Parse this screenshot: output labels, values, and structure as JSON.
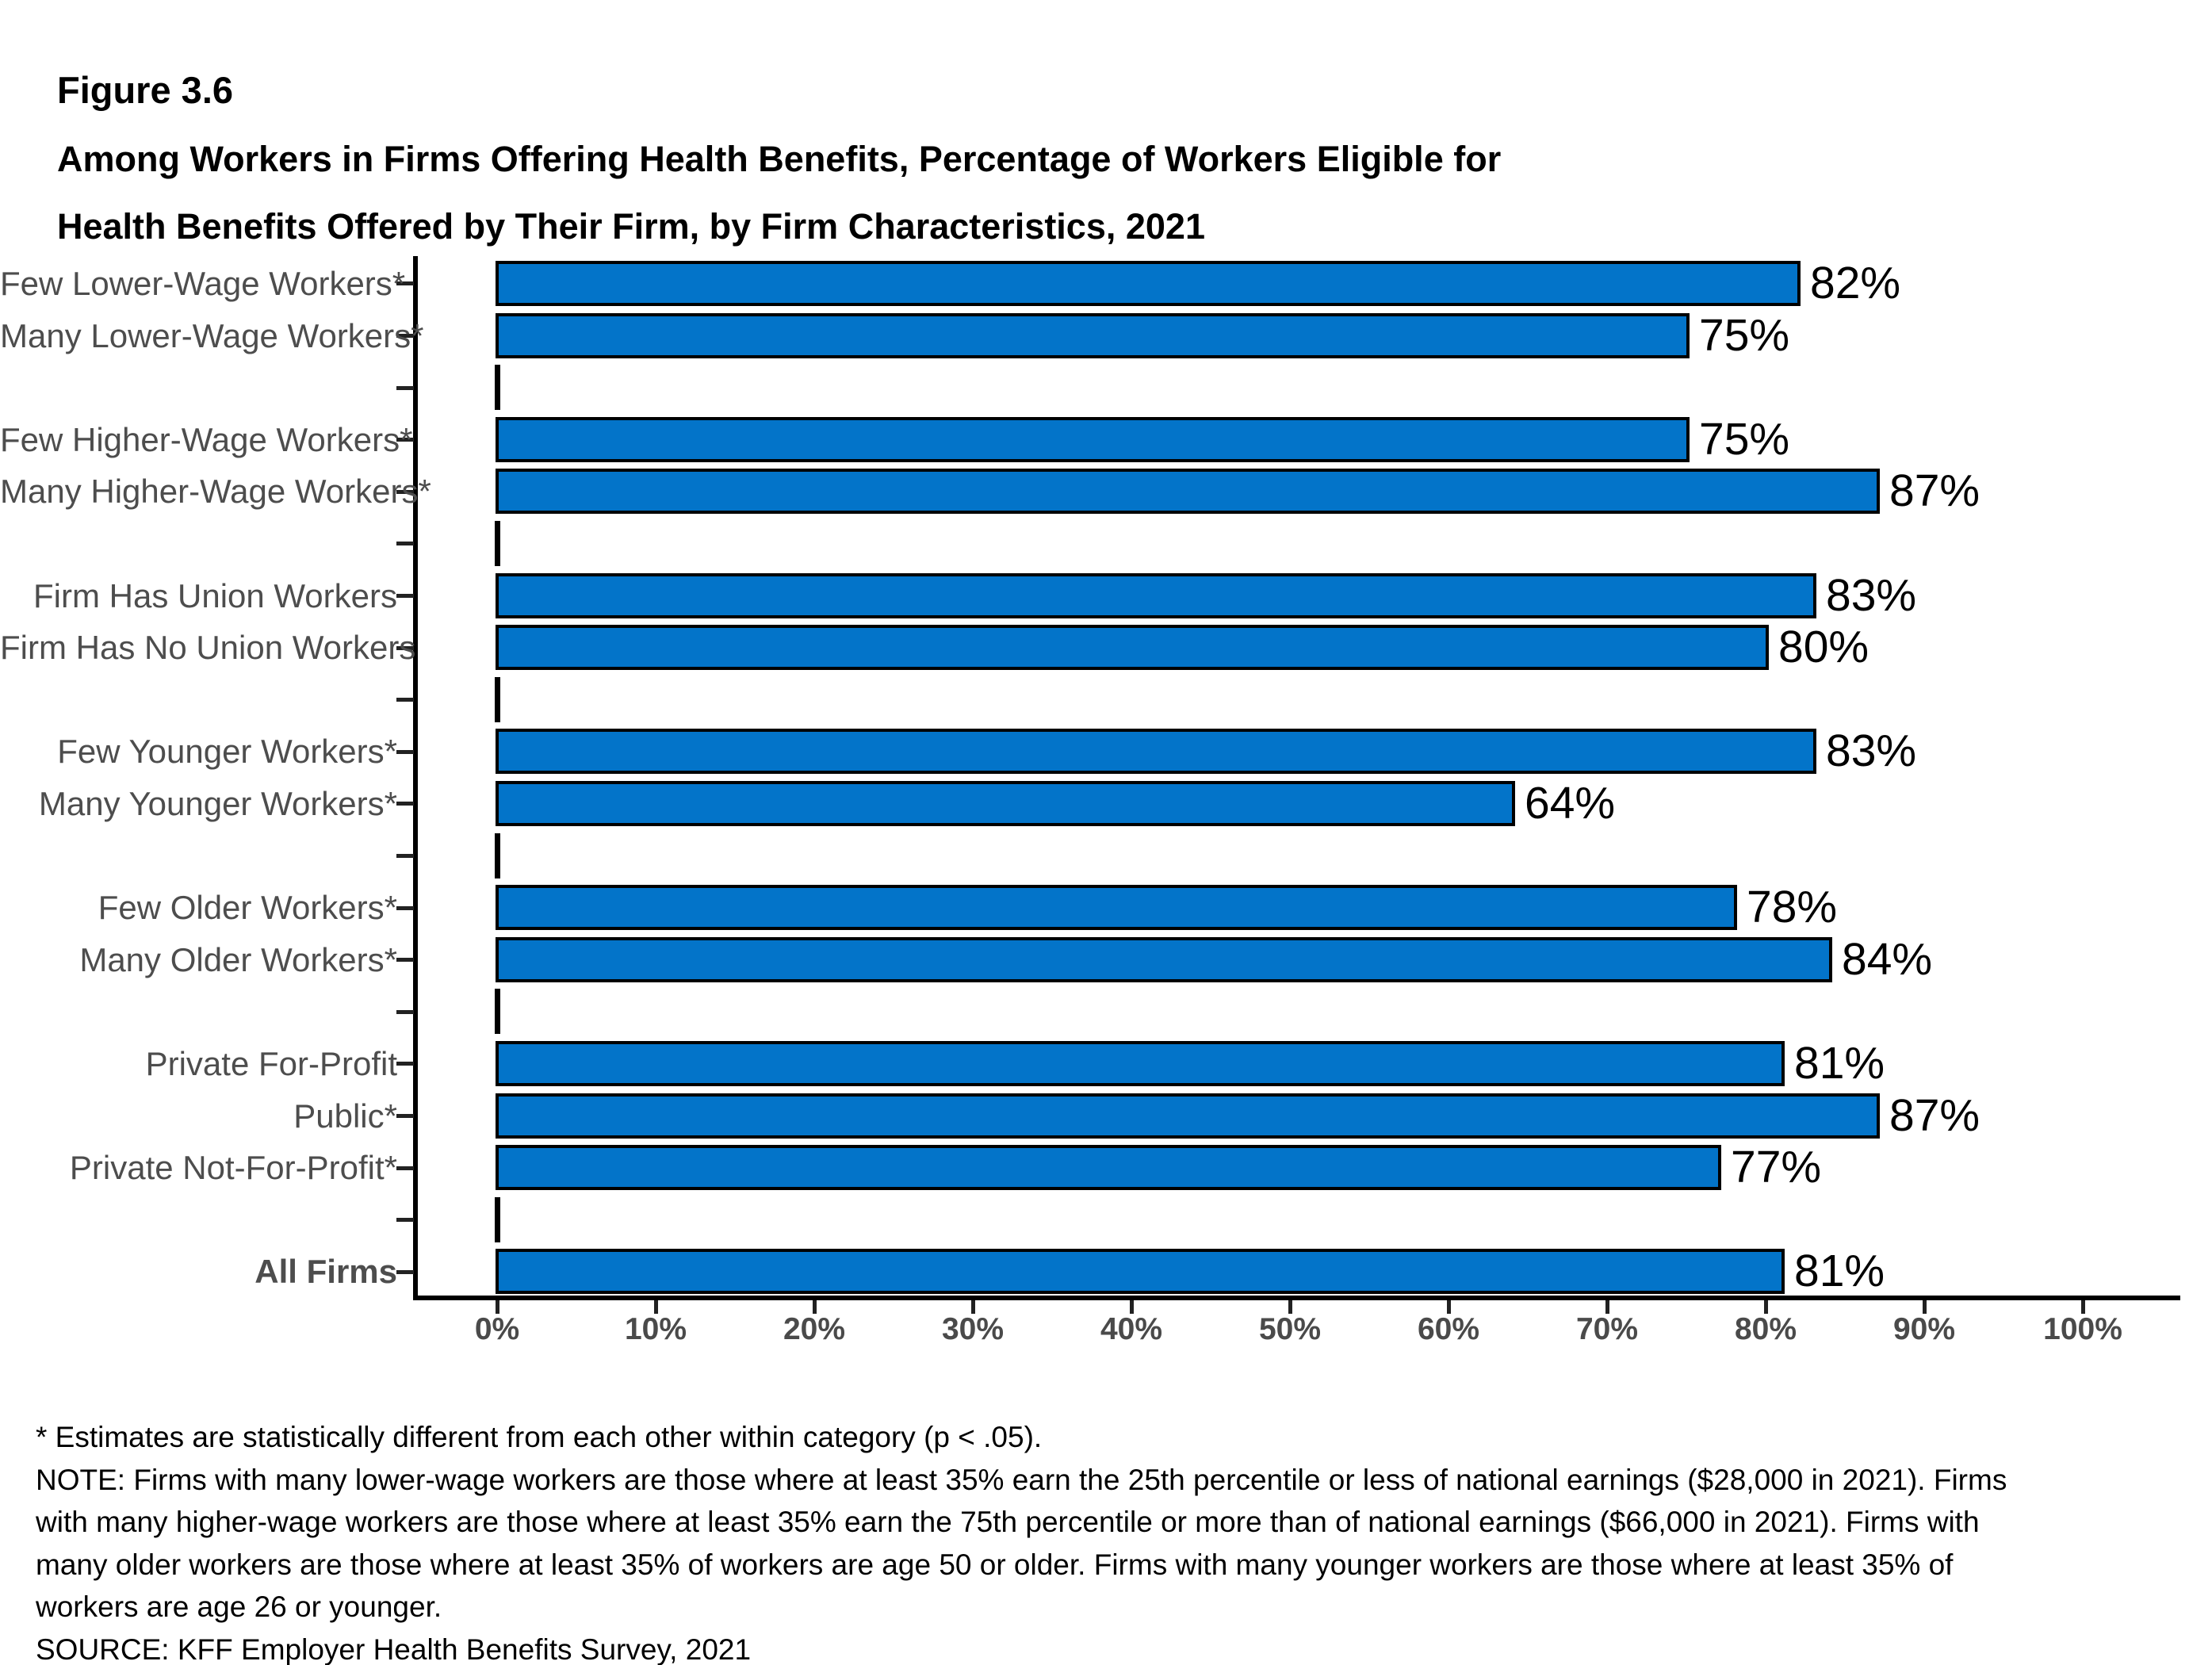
{
  "figure_label": "Figure 3.6",
  "title_line1": "Among Workers in Firms Offering Health Benefits, Percentage of Workers Eligible for",
  "title_line2": "Health Benefits Offered by Their Firm, by Firm Characteristics, 2021",
  "colors": {
    "bar_fill": "#0374c9",
    "bar_border": "#000000",
    "axis": "#000000",
    "category_label": "#4d4d4d",
    "tick_label": "#4a4a4a",
    "value_label": "#000000"
  },
  "chart_data": {
    "type": "bar",
    "orientation": "horizontal",
    "title": "Among Workers in Firms Offering Health Benefits, Percentage of Workers Eligible for Health Benefits Offered by Their Firm, by Firm Characteristics, 2021",
    "xlabel": "",
    "ylabel": "",
    "xlim": [
      0,
      100
    ],
    "grid": false,
    "legend": "none",
    "x_tick_labels": [
      "0%",
      "10%",
      "20%",
      "30%",
      "40%",
      "50%",
      "60%",
      "70%",
      "80%",
      "90%",
      "100%"
    ],
    "value_suffix": "%",
    "rows": [
      {
        "label": "Few Lower-Wage Workers*",
        "value": 82
      },
      {
        "label": "Many Lower-Wage Workers*",
        "value": 75
      },
      {
        "spacer": true
      },
      {
        "label": "Few Higher-Wage Workers*",
        "value": 75
      },
      {
        "label": "Many Higher-Wage Workers*",
        "value": 87
      },
      {
        "spacer": true
      },
      {
        "label": "Firm Has Union Workers",
        "value": 83
      },
      {
        "label": "Firm Has No Union Workers",
        "value": 80
      },
      {
        "spacer": true
      },
      {
        "label": "Few Younger Workers*",
        "value": 83
      },
      {
        "label": "Many Younger Workers*",
        "value": 64
      },
      {
        "spacer": true
      },
      {
        "label": "Few Older Workers*",
        "value": 78
      },
      {
        "label": "Many Older Workers*",
        "value": 84
      },
      {
        "spacer": true
      },
      {
        "label": "Private For-Profit",
        "value": 81
      },
      {
        "label": "Public*",
        "value": 87
      },
      {
        "label": "Private Not-For-Profit*",
        "value": 77
      },
      {
        "spacer": true
      },
      {
        "label": "All Firms",
        "value": 81,
        "bold": true
      }
    ]
  },
  "notes": {
    "asterisk_line": "* Estimates are statistically different from each other within category (p < .05).",
    "note_lines": [
      "NOTE: Firms with many lower-wage workers are those where at least 35% earn the 25th percentile or less of national earnings ($28,000 in 2021). Firms",
      "with many higher-wage workers are those where at least 35% earn the 75th percentile or more than of national earnings ($66,000 in 2021). Firms with",
      "many older workers are those where at least 35% of workers are age 50 or older. Firms with many younger workers are those where at least 35% of",
      "workers are age 26 or younger."
    ],
    "source_line": "SOURCE: KFF Employer Health Benefits Survey, 2021"
  }
}
